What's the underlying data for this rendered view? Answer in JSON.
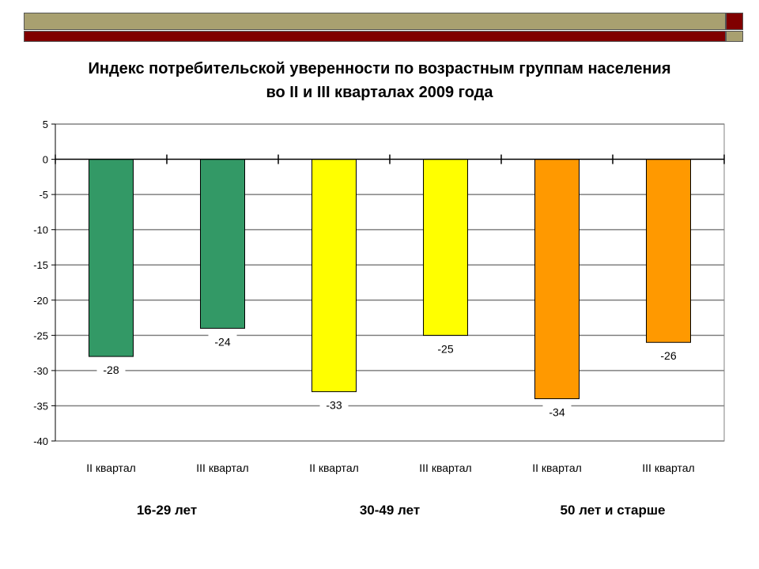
{
  "colors": {
    "deco_olive": "#a8a070",
    "deco_maroon": "#800000",
    "green": "#339966",
    "yellow": "#ffff00",
    "orange": "#ff9900",
    "gridline": "#808080"
  },
  "chart_data": {
    "type": "bar",
    "title": "Индекс потребительской уверенности по возрастным группам населения",
    "subtitle": "во II и III кварталах 2009 года",
    "categories": [
      "II квартал",
      "III квартал",
      "II квартал",
      "III квартал",
      "II квартал",
      "III квартал"
    ],
    "groups": [
      {
        "label": "16-29 лет",
        "categories": [
          "II квартал",
          "III квартал"
        ],
        "values": [
          -28,
          -24
        ],
        "color": "#339966"
      },
      {
        "label": "30-49 лет",
        "categories": [
          "II квартал",
          "III квартал"
        ],
        "values": [
          -33,
          -25
        ],
        "color": "#ffff00"
      },
      {
        "label": "50 лет и старше",
        "categories": [
          "II квартал",
          "III квартал"
        ],
        "values": [
          -34,
          -26
        ],
        "color": "#ff9900"
      }
    ],
    "values": [
      -28,
      -24,
      -33,
      -25,
      -34,
      -26
    ],
    "value_labels": [
      "-28",
      "-24",
      "-33",
      "-25",
      "-34",
      "-26"
    ],
    "ylim": [
      -40,
      5
    ],
    "yticks": [
      5,
      0,
      -5,
      -10,
      -15,
      -20,
      -25,
      -30,
      -35,
      -40
    ],
    "ytick_labels": [
      "5",
      "0",
      "-5",
      "-10",
      "-15",
      "-20",
      "-25",
      "-30",
      "-35",
      "-40"
    ],
    "grid": true,
    "legend": "none",
    "xlabel": "",
    "ylabel": ""
  }
}
